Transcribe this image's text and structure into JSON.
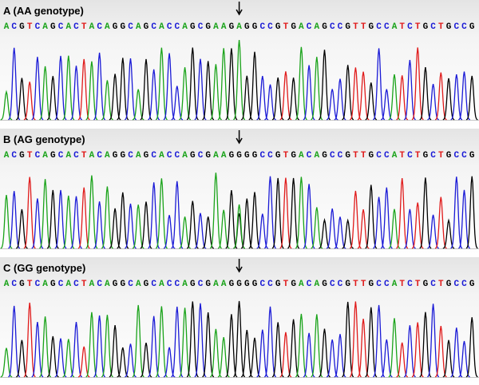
{
  "panels": [
    {
      "title": "A (AA genotype)",
      "sequence": "ACGTCAGCACTACAGGCAGCACCAGCGAAGAGGCCGTGACAGCCGTTGCCATCTGCTGCCG"
    },
    {
      "title": "B (AG genotype)",
      "sequence": "ACGTCAGCACTACAGGCAGCACCAGCGAAGGGGCCGTGACAGCCGTTGCCATCTGCTGCCG"
    },
    {
      "title": "C (GG genotype)",
      "sequence": "ACGTCAGCACTACAGGCAGCACCAGCGAAGGGGCCGTGACAGCCGTTGCCATCTGCTGCCG"
    }
  ]
}
